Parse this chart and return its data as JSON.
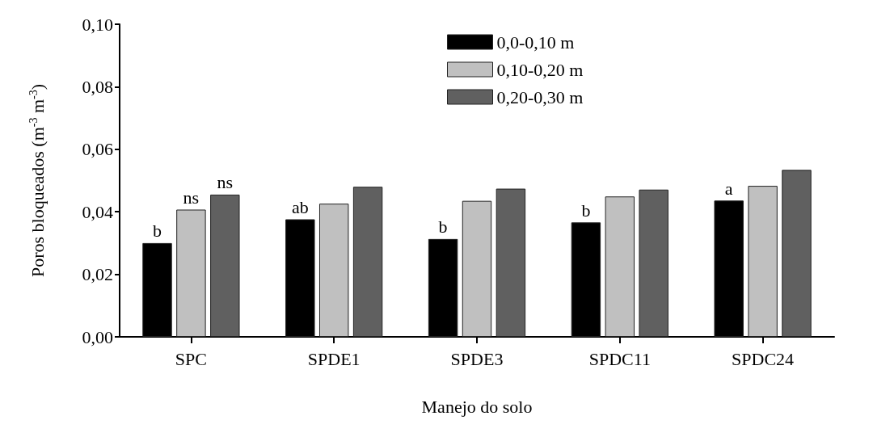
{
  "chart_data": {
    "type": "bar",
    "xlabel": "Manejo do solo",
    "ylabel": "Poros bloqueados (m$^{-3}$ m$^{-3}$)",
    "categories": [
      "SPC",
      "SPDE1",
      "SPDE3",
      "SPDC11",
      "SPDC24"
    ],
    "series": [
      {
        "name": "0,0-0,10 m",
        "color": "#000000",
        "values": [
          0.03,
          0.0376,
          0.0313,
          0.0366,
          0.0436
        ],
        "value_labels": [
          "b",
          "ab",
          "b",
          "b",
          "a"
        ]
      },
      {
        "name": "0,10-0,20 m",
        "color": "#c0c0c0",
        "values": [
          0.0407,
          0.0426,
          0.0435,
          0.0449,
          0.0483
        ],
        "value_labels": [
          "ns",
          null,
          null,
          null,
          null
        ]
      },
      {
        "name": "0,20-0,30 m",
        "color": "#606060",
        "values": [
          0.0455,
          0.048,
          0.0474,
          0.0471,
          0.0534
        ],
        "value_labels": [
          "ns",
          null,
          null,
          null,
          null
        ]
      }
    ],
    "ylim": [
      0,
      0.1
    ],
    "yticks": [
      {
        "value": 0,
        "label": "0,00"
      },
      {
        "value": 0.02,
        "label": "0,02"
      },
      {
        "value": 0.04,
        "label": "0,04"
      },
      {
        "value": 0.06,
        "label": "0,06"
      },
      {
        "value": 0.08,
        "label": "0,08"
      },
      {
        "value": 0.1,
        "label": "0,10"
      }
    ],
    "grid": false,
    "legend": "top"
  }
}
